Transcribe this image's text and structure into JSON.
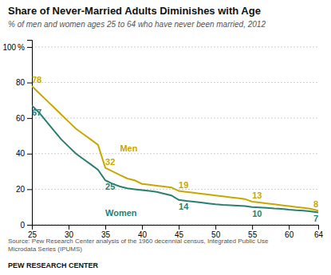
{
  "chart_data": {
    "type": "line",
    "title": "Share of Never-Married Adults Diminishes with Age",
    "subtitle": "% of men and women ages 25 to 64 who have never been married, 2012",
    "source": "Source: Pew Research Center analysis of the 1960 decennial census, Integrated Public Use\nMicrodata Series (IPUMS)",
    "footer": "PEW RESEARCH CENTER",
    "x": [
      25,
      26,
      27,
      28,
      29,
      30,
      31,
      32,
      33,
      34,
      35,
      36,
      37,
      38,
      39,
      40,
      41,
      42,
      43,
      44,
      45,
      46,
      47,
      48,
      49,
      50,
      51,
      52,
      53,
      54,
      55,
      56,
      57,
      58,
      59,
      60,
      61,
      62,
      63,
      64
    ],
    "series": [
      {
        "name": "Men",
        "color": "#c8a800",
        "values": [
          78,
          74,
          70,
          66,
          62,
          58,
          54,
          51,
          48,
          45,
          32,
          30,
          28,
          26,
          25,
          23,
          22.5,
          22,
          21.5,
          21,
          19,
          18.5,
          18,
          17.5,
          17,
          16.5,
          16,
          15.5,
          15,
          14.5,
          13,
          12.5,
          12,
          11.5,
          11,
          10.5,
          10,
          9.5,
          9,
          8
        ],
        "annotations": [
          {
            "x": 25,
            "y": 78,
            "label": "78"
          },
          {
            "x": 35,
            "y": 32,
            "label": "32"
          },
          {
            "x": 45,
            "y": 19,
            "label": "19"
          },
          {
            "x": 55,
            "y": 13,
            "label": "13"
          },
          {
            "x": 64,
            "y": 8,
            "label": "8"
          }
        ]
      },
      {
        "name": "Women",
        "color": "#2a7f6f",
        "values": [
          67,
          63,
          58,
          53,
          48,
          44,
          40,
          37,
          34,
          31,
          25,
          23,
          21.5,
          20.5,
          20,
          19.5,
          19,
          18.5,
          17.5,
          16.5,
          14,
          13.5,
          13,
          12.5,
          12,
          11.5,
          11.2,
          11,
          10.8,
          10.5,
          10,
          9.8,
          9.5,
          9.2,
          9,
          8.5,
          8.2,
          8,
          7.5,
          7
        ],
        "annotations": [
          {
            "x": 25,
            "y": 67,
            "label": "67"
          },
          {
            "x": 35,
            "y": 25,
            "label": "25"
          },
          {
            "x": 45,
            "y": 14,
            "label": "14"
          },
          {
            "x": 55,
            "y": 10,
            "label": "10"
          },
          {
            "x": 64,
            "y": 7,
            "label": "7"
          }
        ]
      }
    ],
    "xlim": [
      25,
      64
    ],
    "ylim": [
      0,
      104
    ],
    "xticks": [
      25,
      30,
      35,
      40,
      45,
      50,
      55,
      60,
      64
    ],
    "yticks": [
      0,
      20,
      40,
      60,
      80,
      {
        "value": 100,
        "label": "100 %"
      }
    ],
    "grid": true
  }
}
